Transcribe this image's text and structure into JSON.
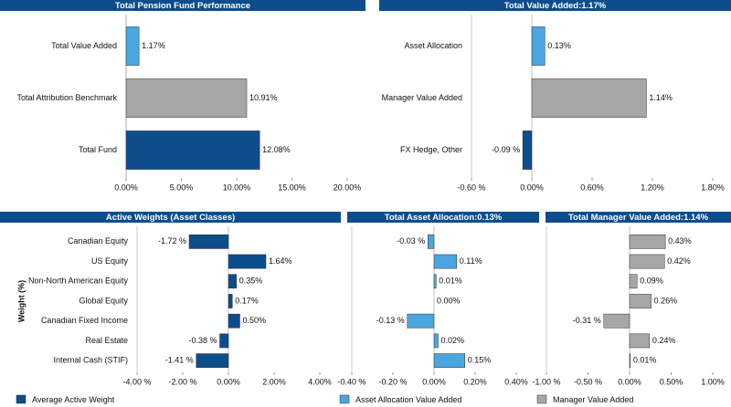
{
  "chart_data": [
    {
      "type": "hbar",
      "title": "Total Pension Fund Performance",
      "categories": [
        "Total Value Added",
        "Total Attribution Benchmark",
        "Total Fund"
      ],
      "values": [
        1.17,
        10.91,
        12.08
      ],
      "value_labels": [
        "1.17%",
        "10.91%",
        "12.08%"
      ],
      "colors": [
        "#4ba6e0",
        "#a6a6a6",
        "#0d4d8c"
      ],
      "xlim": [
        0,
        20
      ],
      "xticks": [
        {
          "value": 0,
          "label": "0.00%"
        },
        {
          "value": 5,
          "label": "5.00%"
        },
        {
          "value": 10,
          "label": "10.00%"
        },
        {
          "value": 15,
          "label": "15.00%"
        },
        {
          "value": 20,
          "label": "20.00%"
        }
      ]
    },
    {
      "type": "hbar",
      "title": "Total Value Added:1.17%",
      "categories": [
        "Asset Allocation",
        "Manager Value Added",
        "FX Hedge, Other"
      ],
      "values": [
        0.13,
        1.14,
        -0.09
      ],
      "value_labels": [
        "0.13%",
        "1.14%",
        "-0.09 %"
      ],
      "colors": [
        "#4ba6e0",
        "#a6a6a6",
        "#0d4d8c"
      ],
      "xlim": [
        -0.6,
        1.8
      ],
      "xticks": [
        {
          "value": -0.6,
          "label": "-0.60 %"
        },
        {
          "value": 0,
          "label": "0.00%"
        },
        {
          "value": 0.6,
          "label": "0.60%"
        },
        {
          "value": 1.2,
          "label": "1.20%"
        },
        {
          "value": 1.8,
          "label": "1.80%"
        }
      ]
    },
    {
      "type": "hbar",
      "title": "Active Weights (Asset Classes)",
      "ylabel": "Weight (%)",
      "categories": [
        "Canadian Equity",
        "US Equity",
        "Non-North American Equity",
        "Global Equity",
        "Canadian Fixed Income",
        "Real Estate",
        "Internal Cash (STIF)"
      ],
      "series": [
        {
          "name": "Average Active Weight",
          "color": "#0d4d8c",
          "values": [
            -1.72,
            1.64,
            0.35,
            0.17,
            0.5,
            -0.38,
            -1.41
          ]
        }
      ],
      "value_labels": [
        "-1.72 %",
        "1.64%",
        "0.35%",
        "0.17%",
        "0.50%",
        "-0.38 %",
        "-1.41 %"
      ],
      "xlim": [
        -4,
        4
      ],
      "xticks": [
        {
          "value": -4,
          "label": "-4.00 %"
        },
        {
          "value": -2,
          "label": "-2.00 %"
        },
        {
          "value": 0,
          "label": "0.00%"
        },
        {
          "value": 2,
          "label": "2.00%"
        },
        {
          "value": 4,
          "label": "4.00%"
        }
      ]
    },
    {
      "type": "hbar",
      "title": "Total Asset Allocation:0.13%",
      "series": [
        {
          "name": "Asset Allocation Value Added",
          "color": "#4ba6e0",
          "values": [
            -0.03,
            0.11,
            0.01,
            0.0,
            -0.13,
            0.02,
            0.15
          ]
        }
      ],
      "value_labels": [
        "-0.03 %",
        "0.11%",
        "0.01%",
        "0.00%",
        "-0.13 %",
        "0.02%",
        "0.15%"
      ],
      "xlim": [
        -0.4,
        0.4
      ],
      "xticks": [
        {
          "value": -0.4,
          "label": "-0.40 %"
        },
        {
          "value": -0.2,
          "label": "-0.20 %"
        },
        {
          "value": 0,
          "label": "0.00%"
        },
        {
          "value": 0.2,
          "label": "0.20%"
        },
        {
          "value": 0.4,
          "label": "0.40%"
        }
      ]
    },
    {
      "type": "hbar",
      "title": "Total Manager Value Added:1.14%",
      "series": [
        {
          "name": "Manager Value Added",
          "color": "#a6a6a6",
          "values": [
            0.43,
            0.42,
            0.09,
            0.26,
            -0.31,
            0.24,
            0.01
          ]
        }
      ],
      "value_labels": [
        "0.43%",
        "0.42%",
        "0.09%",
        "0.26%",
        "-0.31 %",
        "0.24%",
        "0.01%"
      ],
      "xlim": [
        -1,
        1
      ],
      "xticks": [
        {
          "value": -1,
          "label": "-1.00 %"
        },
        {
          "value": -0.5,
          "label": "-0.50 %"
        },
        {
          "value": 0,
          "label": "0.00%"
        },
        {
          "value": 0.5,
          "label": "0.50%"
        },
        {
          "value": 1,
          "label": "1.00%"
        }
      ]
    }
  ]
}
